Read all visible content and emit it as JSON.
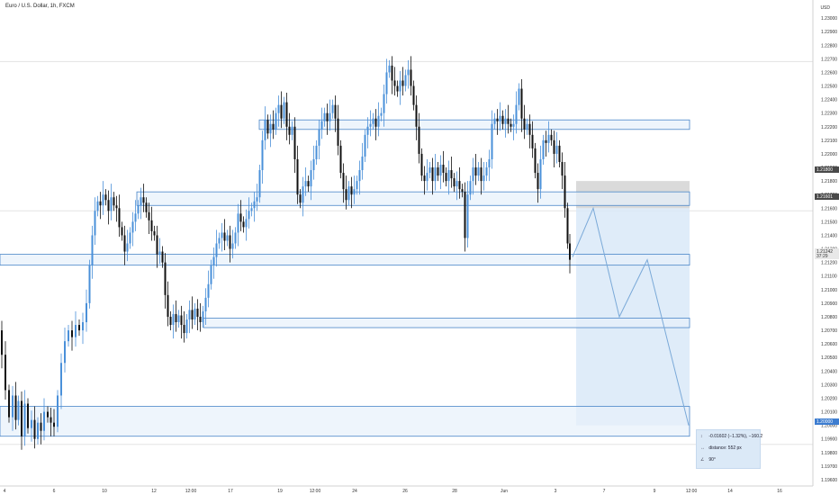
{
  "header": {
    "title": "Euro / U.S. Dollar, 1h, FXCM",
    "unit": "USD"
  },
  "price_badges": [
    {
      "label": "1.21800",
      "style": "dark"
    },
    {
      "label": "1.21601",
      "style": "dark"
    },
    {
      "label": "1.21242",
      "style": "grey",
      "sub": "37:29"
    },
    {
      "label": "1.20000",
      "style": "blue"
    }
  ],
  "measure": {
    "change": "-0.01602 (−1.32%), −160.2",
    "distance": "distance: 552 px",
    "angle": "90°"
  },
  "colors": {
    "bull": "#4a90d9",
    "bear": "#111111",
    "zone_fill": "#e7f1fb",
    "zone_stroke": "#4a86c8",
    "projection": "#d9e9f8"
  },
  "chart_data": {
    "type": "candlestick",
    "title": "Euro / U.S. Dollar, 1h, FXCM",
    "ylabel": "USD",
    "ylim": [
      1.196,
      1.231
    ],
    "y_ticks": [
      "1.19600",
      "1.19700",
      "1.19800",
      "1.19900",
      "1.20000",
      "1.20100",
      "1.20200",
      "1.20300",
      "1.20400",
      "1.20500",
      "1.20600",
      "1.20700",
      "1.20800",
      "1.20900",
      "1.21000",
      "1.21100",
      "1.21200",
      "1.21300",
      "1.21400",
      "1.21500",
      "1.21600",
      "1.21700",
      "1.21800",
      "1.21900",
      "1.22000",
      "1.22100",
      "1.22200",
      "1.22300",
      "1.22400",
      "1.22500",
      "1.22600",
      "1.22700",
      "1.22800",
      "1.22900",
      "1.23000"
    ],
    "x_ticks": [
      "4",
      "6",
      "10",
      "12",
      "12:00",
      "17",
      "19",
      "12:00",
      "24",
      "26",
      "28",
      "Jun",
      "3",
      "7",
      "9",
      "12:00",
      "14",
      "16"
    ],
    "zones": [
      {
        "from": 1.2218,
        "to": 1.2225
      },
      {
        "from": 1.2162,
        "to": 1.2172
      },
      {
        "from": 1.2118,
        "to": 1.2126
      },
      {
        "from": 1.2072,
        "to": 1.2079
      },
      {
        "from": 1.1992,
        "to": 1.2014
      }
    ],
    "path": [
      {
        "t": 0,
        "v": 1.207
      },
      {
        "t": 4,
        "v": 1.2052
      },
      {
        "t": 8,
        "v": 1.2026
      },
      {
        "t": 12,
        "v": 1.2006
      },
      {
        "t": 16,
        "v": 1.2022
      },
      {
        "t": 19,
        "v": 1.2004
      },
      {
        "t": 22,
        "v": 1.2018
      },
      {
        "t": 26,
        "v": 1.1992
      },
      {
        "t": 29,
        "v": 1.2016
      },
      {
        "t": 33,
        "v": 1.1998
      },
      {
        "t": 37,
        "v": 1.2004
      },
      {
        "t": 40,
        "v": 1.199
      },
      {
        "t": 44,
        "v": 1.2002
      },
      {
        "t": 47,
        "v": 1.1996
      },
      {
        "t": 51,
        "v": 1.201
      },
      {
        "t": 55,
        "v": 1.2006
      },
      {
        "t": 58,
        "v": 1.2002
      },
      {
        "t": 62,
        "v": 1.1999
      },
      {
        "t": 66,
        "v": 1.2022
      },
      {
        "t": 70,
        "v": 1.2046
      },
      {
        "t": 74,
        "v": 1.2062
      },
      {
        "t": 78,
        "v": 1.207
      },
      {
        "t": 82,
        "v": 1.2065
      },
      {
        "t": 86,
        "v": 1.2074
      },
      {
        "t": 90,
        "v": 1.207
      },
      {
        "t": 94,
        "v": 1.2076
      },
      {
        "t": 98,
        "v": 1.209
      },
      {
        "t": 101,
        "v": 1.2118
      },
      {
        "t": 104,
        "v": 1.214
      },
      {
        "t": 107,
        "v": 1.2158
      },
      {
        "t": 110,
        "v": 1.2165
      },
      {
        "t": 113,
        "v": 1.2162
      },
      {
        "t": 116,
        "v": 1.217
      },
      {
        "t": 119,
        "v": 1.2166
      },
      {
        "t": 122,
        "v": 1.2158
      },
      {
        "t": 125,
        "v": 1.2168
      },
      {
        "t": 128,
        "v": 1.2162
      },
      {
        "t": 131,
        "v": 1.216
      },
      {
        "t": 134,
        "v": 1.2146
      },
      {
        "t": 137,
        "v": 1.214
      },
      {
        "t": 140,
        "v": 1.2128
      },
      {
        "t": 143,
        "v": 1.2134
      },
      {
        "t": 146,
        "v": 1.2142
      },
      {
        "t": 149,
        "v": 1.215
      },
      {
        "t": 152,
        "v": 1.2156
      },
      {
        "t": 155,
        "v": 1.2162
      },
      {
        "t": 158,
        "v": 1.2168
      },
      {
        "t": 161,
        "v": 1.2164
      },
      {
        "t": 164,
        "v": 1.2157
      },
      {
        "t": 167,
        "v": 1.2151
      },
      {
        "t": 170,
        "v": 1.2143
      },
      {
        "t": 173,
        "v": 1.214
      },
      {
        "t": 176,
        "v": 1.2126
      },
      {
        "t": 179,
        "v": 1.2128
      },
      {
        "t": 182,
        "v": 1.212
      },
      {
        "t": 185,
        "v": 1.2096
      },
      {
        "t": 188,
        "v": 1.208
      },
      {
        "t": 191,
        "v": 1.2074
      },
      {
        "t": 194,
        "v": 1.2082
      },
      {
        "t": 197,
        "v": 1.2076
      },
      {
        "t": 200,
        "v": 1.2081
      },
      {
        "t": 203,
        "v": 1.2074
      },
      {
        "t": 206,
        "v": 1.2068
      },
      {
        "t": 209,
        "v": 1.2078
      },
      {
        "t": 212,
        "v": 1.2085
      },
      {
        "t": 215,
        "v": 1.2078
      },
      {
        "t": 218,
        "v": 1.2086
      },
      {
        "t": 221,
        "v": 1.208
      },
      {
        "t": 224,
        "v": 1.2076
      },
      {
        "t": 227,
        "v": 1.2084
      },
      {
        "t": 230,
        "v": 1.2094
      },
      {
        "t": 233,
        "v": 1.2104
      },
      {
        "t": 236,
        "v": 1.2118
      },
      {
        "t": 239,
        "v": 1.2124
      },
      {
        "t": 242,
        "v": 1.2134
      },
      {
        "t": 245,
        "v": 1.2138
      },
      {
        "t": 248,
        "v": 1.2142
      },
      {
        "t": 251,
        "v": 1.2136
      },
      {
        "t": 254,
        "v": 1.214
      },
      {
        "t": 257,
        "v": 1.213
      },
      {
        "t": 260,
        "v": 1.2134
      },
      {
        "t": 263,
        "v": 1.2142
      },
      {
        "t": 266,
        "v": 1.2156
      },
      {
        "t": 269,
        "v": 1.215
      },
      {
        "t": 272,
        "v": 1.2146
      },
      {
        "t": 275,
        "v": 1.2152
      },
      {
        "t": 278,
        "v": 1.2158
      },
      {
        "t": 281,
        "v": 1.216
      },
      {
        "t": 284,
        "v": 1.2165
      },
      {
        "t": 287,
        "v": 1.2168
      },
      {
        "t": 290,
        "v": 1.2188
      },
      {
        "t": 293,
        "v": 1.221
      },
      {
        "t": 296,
        "v": 1.2225
      },
      {
        "t": 299,
        "v": 1.2215
      },
      {
        "t": 302,
        "v": 1.2222
      },
      {
        "t": 305,
        "v": 1.2218
      },
      {
        "t": 308,
        "v": 1.223
      },
      {
        "t": 311,
        "v": 1.2236
      },
      {
        "t": 314,
        "v": 1.2226
      },
      {
        "t": 317,
        "v": 1.2238
      },
      {
        "t": 320,
        "v": 1.222
      },
      {
        "t": 323,
        "v": 1.2214
      },
      {
        "t": 326,
        "v": 1.222
      },
      {
        "t": 329,
        "v": 1.2196
      },
      {
        "t": 332,
        "v": 1.217
      },
      {
        "t": 335,
        "v": 1.2164
      },
      {
        "t": 338,
        "v": 1.2176
      },
      {
        "t": 341,
        "v": 1.218
      },
      {
        "t": 344,
        "v": 1.2176
      },
      {
        "t": 347,
        "v": 1.2188
      },
      {
        "t": 350,
        "v": 1.2196
      },
      {
        "t": 353,
        "v": 1.2206
      },
      {
        "t": 356,
        "v": 1.2218
      },
      {
        "t": 359,
        "v": 1.2224
      },
      {
        "t": 362,
        "v": 1.223
      },
      {
        "t": 365,
        "v": 1.2224
      },
      {
        "t": 368,
        "v": 1.223
      },
      {
        "t": 371,
        "v": 1.2236
      },
      {
        "t": 374,
        "v": 1.2226
      },
      {
        "t": 377,
        "v": 1.2206
      },
      {
        "t": 380,
        "v": 1.2186
      },
      {
        "t": 383,
        "v": 1.2174
      },
      {
        "t": 386,
        "v": 1.2166
      },
      {
        "t": 389,
        "v": 1.2176
      },
      {
        "t": 392,
        "v": 1.217
      },
      {
        "t": 395,
        "v": 1.2174
      },
      {
        "t": 398,
        "v": 1.218
      },
      {
        "t": 401,
        "v": 1.2188
      },
      {
        "t": 404,
        "v": 1.2198
      },
      {
        "t": 407,
        "v": 1.2214
      },
      {
        "t": 410,
        "v": 1.222
      },
      {
        "t": 413,
        "v": 1.2222
      },
      {
        "t": 416,
        "v": 1.2226
      },
      {
        "t": 419,
        "v": 1.222
      },
      {
        "t": 422,
        "v": 1.2228
      },
      {
        "t": 425,
        "v": 1.223
      },
      {
        "t": 428,
        "v": 1.2244
      },
      {
        "t": 431,
        "v": 1.226
      },
      {
        "t": 434,
        "v": 1.2265
      },
      {
        "t": 437,
        "v": 1.2254
      },
      {
        "t": 440,
        "v": 1.225
      },
      {
        "t": 443,
        "v": 1.2246
      },
      {
        "t": 446,
        "v": 1.2254
      },
      {
        "t": 449,
        "v": 1.225
      },
      {
        "t": 452,
        "v": 1.2258
      },
      {
        "t": 455,
        "v": 1.2262
      },
      {
        "t": 458,
        "v": 1.225
      },
      {
        "t": 461,
        "v": 1.2236
      },
      {
        "t": 464,
        "v": 1.222
      },
      {
        "t": 467,
        "v": 1.22
      },
      {
        "t": 470,
        "v": 1.2184
      },
      {
        "t": 473,
        "v": 1.218
      },
      {
        "t": 476,
        "v": 1.2186
      },
      {
        "t": 479,
        "v": 1.219
      },
      {
        "t": 482,
        "v": 1.218
      },
      {
        "t": 485,
        "v": 1.219
      },
      {
        "t": 488,
        "v": 1.2184
      },
      {
        "t": 491,
        "v": 1.2192
      },
      {
        "t": 494,
        "v": 1.2186
      },
      {
        "t": 497,
        "v": 1.218
      },
      {
        "t": 500,
        "v": 1.2188
      },
      {
        "t": 503,
        "v": 1.2182
      },
      {
        "t": 506,
        "v": 1.2176
      },
      {
        "t": 509,
        "v": 1.218
      },
      {
        "t": 512,
        "v": 1.2174
      },
      {
        "t": 515,
        "v": 1.2172
      },
      {
        "t": 518,
        "v": 1.2138
      },
      {
        "t": 521,
        "v": 1.217
      },
      {
        "t": 524,
        "v": 1.218
      },
      {
        "t": 527,
        "v": 1.219
      },
      {
        "t": 530,
        "v": 1.2184
      },
      {
        "t": 533,
        "v": 1.219
      },
      {
        "t": 536,
        "v": 1.218
      },
      {
        "t": 539,
        "v": 1.2184
      },
      {
        "t": 542,
        "v": 1.219
      },
      {
        "t": 545,
        "v": 1.2196
      },
      {
        "t": 548,
        "v": 1.2222
      },
      {
        "t": 551,
        "v": 1.2226
      },
      {
        "t": 554,
        "v": 1.2224
      },
      {
        "t": 557,
        "v": 1.2228
      },
      {
        "t": 560,
        "v": 1.2222
      },
      {
        "t": 563,
        "v": 1.2226
      },
      {
        "t": 566,
        "v": 1.2222
      },
      {
        "t": 569,
        "v": 1.222
      },
      {
        "t": 572,
        "v": 1.2222
      },
      {
        "t": 575,
        "v": 1.2236
      },
      {
        "t": 578,
        "v": 1.2248
      },
      {
        "t": 581,
        "v": 1.2226
      },
      {
        "t": 584,
        "v": 1.2218
      },
      {
        "t": 587,
        "v": 1.2222
      },
      {
        "t": 590,
        "v": 1.2214
      },
      {
        "t": 593,
        "v": 1.2204
      },
      {
        "t": 596,
        "v": 1.2186
      },
      {
        "t": 599,
        "v": 1.2174
      },
      {
        "t": 602,
        "v": 1.2196
      },
      {
        "t": 605,
        "v": 1.221
      },
      {
        "t": 608,
        "v": 1.2208
      },
      {
        "t": 611,
        "v": 1.2214
      },
      {
        "t": 614,
        "v": 1.221
      },
      {
        "t": 617,
        "v": 1.22
      },
      {
        "t": 620,
        "v": 1.2206
      },
      {
        "t": 623,
        "v": 1.2194
      },
      {
        "t": 626,
        "v": 1.2184
      },
      {
        "t": 629,
        "v": 1.216
      },
      {
        "t": 632,
        "v": 1.2134
      },
      {
        "t": 634,
        "v": 1.2122
      }
    ],
    "projection": {
      "box": {
        "t_from": 640,
        "t_to": 766,
        "top": 1.216,
        "bottom": 1.2
      },
      "stop_box": {
        "top": 1.218,
        "bottom": 1.216
      },
      "path": [
        {
          "t": 636,
          "v": 1.2124
        },
        {
          "t": 659,
          "v": 1.216
        },
        {
          "t": 688,
          "v": 1.208
        },
        {
          "t": 719,
          "v": 1.2122
        },
        {
          "t": 765,
          "v": 1.2
        }
      ]
    },
    "grid": false,
    "legend": "none"
  }
}
